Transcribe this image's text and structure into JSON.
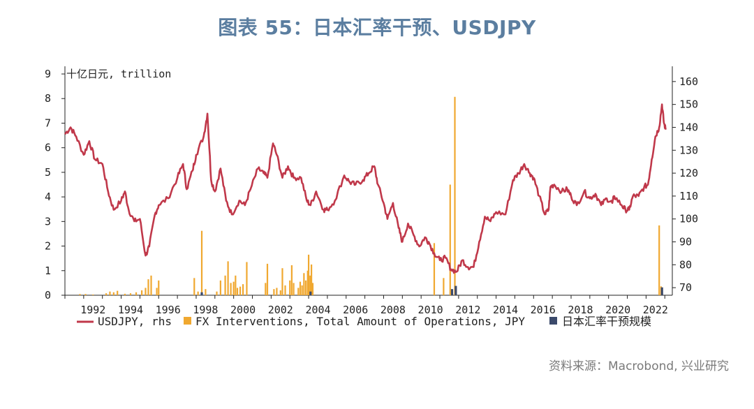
{
  "page": {
    "title": "图表 55：日本汇率干预、USDJPY",
    "source": "资料来源：Macrobond, 兴业研究"
  },
  "colors": {
    "usdjpy": "#c0384a",
    "fx": "#f0a830",
    "jp": "#3b4a6b",
    "axis": "#222222",
    "title": "#5b7ea0"
  },
  "chart_data": {
    "type": "line",
    "title": "日本汇率干预、USDJPY",
    "y_left_label": "十亿日元, trillion",
    "y_left_lim": [
      0,
      9
    ],
    "y_left_ticks": [
      "0",
      "1",
      "2",
      "3",
      "4",
      "5",
      "6",
      "7",
      "8",
      "9"
    ],
    "y_right_lim": [
      66.7,
      163.3
    ],
    "y_right_ticks": [
      "70",
      "80",
      "90",
      "100",
      "110",
      "120",
      "130",
      "140",
      "150",
      "160"
    ],
    "x_lim": [
      1991.0,
      2023.4
    ],
    "x_ticks": [
      "1992",
      "1994",
      "1996",
      "1998",
      "2000",
      "2002",
      "2004",
      "2006",
      "2008",
      "2010",
      "2012",
      "2014",
      "2016",
      "2018",
      "2020",
      "2022"
    ],
    "legend": [
      {
        "name": "USDJPY, rhs",
        "style": "line",
        "color": "#c0384a"
      },
      {
        "name": "FX Interventions, Total Amount of Operations, JPY",
        "style": "bar",
        "color": "#f0a830"
      },
      {
        "name": "日本汇率干预规模",
        "style": "bar",
        "color": "#3b4a6b"
      }
    ],
    "series": [
      {
        "name": "USDJPY, rhs",
        "axis": "right",
        "points": [
          [
            1991.0,
            137
          ],
          [
            1991.3,
            140
          ],
          [
            1991.6,
            136
          ],
          [
            1992.0,
            128
          ],
          [
            1992.3,
            134
          ],
          [
            1992.6,
            126
          ],
          [
            1993.0,
            124
          ],
          [
            1993.3,
            112
          ],
          [
            1993.6,
            104
          ],
          [
            1994.0,
            108
          ],
          [
            1994.2,
            112
          ],
          [
            1994.4,
            104
          ],
          [
            1994.7,
            99
          ],
          [
            1995.0,
            100
          ],
          [
            1995.3,
            84
          ],
          [
            1995.5,
            88
          ],
          [
            1995.8,
            102
          ],
          [
            1996.0,
            106
          ],
          [
            1996.5,
            109
          ],
          [
            1997.0,
            118
          ],
          [
            1997.3,
            124
          ],
          [
            1997.5,
            113
          ],
          [
            1997.8,
            121
          ],
          [
            1998.0,
            128
          ],
          [
            1998.4,
            136
          ],
          [
            1998.6,
            146
          ],
          [
            1998.8,
            117
          ],
          [
            1999.0,
            112
          ],
          [
            1999.3,
            122
          ],
          [
            1999.6,
            108
          ],
          [
            1999.9,
            102
          ],
          [
            2000.3,
            108
          ],
          [
            2000.6,
            106
          ],
          [
            2000.9,
            113
          ],
          [
            2001.3,
            122
          ],
          [
            2001.6,
            120
          ],
          [
            2001.8,
            118
          ],
          [
            2002.1,
            133
          ],
          [
            2002.3,
            128
          ],
          [
            2002.6,
            118
          ],
          [
            2002.9,
            123
          ],
          [
            2003.2,
            118
          ],
          [
            2003.6,
            118
          ],
          [
            2003.9,
            108
          ],
          [
            2004.1,
            106
          ],
          [
            2004.4,
            112
          ],
          [
            2004.8,
            104
          ],
          [
            2005.0,
            104
          ],
          [
            2005.4,
            108
          ],
          [
            2005.9,
            119
          ],
          [
            2006.2,
            116
          ],
          [
            2006.5,
            115
          ],
          [
            2006.9,
            117
          ],
          [
            2007.2,
            120
          ],
          [
            2007.5,
            123
          ],
          [
            2007.7,
            115
          ],
          [
            2008.0,
            107
          ],
          [
            2008.2,
            100
          ],
          [
            2008.5,
            107
          ],
          [
            2008.8,
            96
          ],
          [
            2009.0,
            90
          ],
          [
            2009.3,
            98
          ],
          [
            2009.6,
            93
          ],
          [
            2009.9,
            88
          ],
          [
            2010.2,
            92
          ],
          [
            2010.4,
            90
          ],
          [
            2010.7,
            85
          ],
          [
            2011.0,
            82
          ],
          [
            2011.3,
            83
          ],
          [
            2011.6,
            78
          ],
          [
            2011.9,
            77
          ],
          [
            2012.2,
            82
          ],
          [
            2012.5,
            79
          ],
          [
            2012.8,
            79
          ],
          [
            2013.1,
            90
          ],
          [
            2013.4,
            101
          ],
          [
            2013.7,
            99
          ],
          [
            2014.0,
            103
          ],
          [
            2014.5,
            102
          ],
          [
            2014.9,
            117
          ],
          [
            2015.2,
            120
          ],
          [
            2015.5,
            124
          ],
          [
            2015.8,
            120
          ],
          [
            2016.0,
            118
          ],
          [
            2016.3,
            110
          ],
          [
            2016.6,
            102
          ],
          [
            2016.8,
            104
          ],
          [
            2016.9,
            114
          ],
          [
            2017.1,
            115
          ],
          [
            2017.5,
            112
          ],
          [
            2017.8,
            113
          ],
          [
            2018.0,
            110
          ],
          [
            2018.3,
            106
          ],
          [
            2018.7,
            112
          ],
          [
            2019.0,
            109
          ],
          [
            2019.3,
            111
          ],
          [
            2019.6,
            106
          ],
          [
            2019.9,
            109
          ],
          [
            2020.2,
            107
          ],
          [
            2020.3,
            110
          ],
          [
            2020.7,
            106
          ],
          [
            2020.9,
            104
          ],
          [
            2021.1,
            104
          ],
          [
            2021.3,
            110
          ],
          [
            2021.6,
            110
          ],
          [
            2021.9,
            114
          ],
          [
            2022.1,
            115
          ],
          [
            2022.3,
            126
          ],
          [
            2022.5,
            136
          ],
          [
            2022.7,
            140
          ],
          [
            2022.85,
            150
          ],
          [
            2022.95,
            142
          ],
          [
            2023.05,
            139
          ]
        ]
      },
      {
        "name": "FX Interventions, Total Amount of Operations, JPY",
        "axis": "left",
        "bars": [
          [
            1991.8,
            0.05
          ],
          [
            1992.1,
            0.05
          ],
          [
            1992.5,
            0.03
          ],
          [
            1993.2,
            0.08
          ],
          [
            1993.4,
            0.15
          ],
          [
            1993.6,
            0.12
          ],
          [
            1993.8,
            0.18
          ],
          [
            1994.2,
            0.06
          ],
          [
            1994.5,
            0.08
          ],
          [
            1994.8,
            0.12
          ],
          [
            1995.1,
            0.2
          ],
          [
            1995.3,
            0.3
          ],
          [
            1995.45,
            0.65
          ],
          [
            1995.6,
            0.8
          ],
          [
            1995.9,
            0.3
          ],
          [
            1996.0,
            0.6
          ],
          [
            1997.9,
            0.7
          ],
          [
            1998.1,
            0.15
          ],
          [
            1998.3,
            2.62
          ],
          [
            1998.5,
            0.25
          ],
          [
            1999.1,
            0.15
          ],
          [
            1999.3,
            0.6
          ],
          [
            1999.55,
            0.8
          ],
          [
            1999.7,
            1.38
          ],
          [
            1999.85,
            0.5
          ],
          [
            2000.0,
            0.55
          ],
          [
            2000.1,
            0.8
          ],
          [
            2000.2,
            0.3
          ],
          [
            2000.35,
            0.35
          ],
          [
            2000.5,
            0.45
          ],
          [
            2000.7,
            1.35
          ],
          [
            2001.7,
            0.5
          ],
          [
            2001.8,
            1.28
          ],
          [
            2002.15,
            0.25
          ],
          [
            2002.3,
            0.3
          ],
          [
            2002.5,
            0.2
          ],
          [
            2002.6,
            1.1
          ],
          [
            2002.75,
            0.4
          ],
          [
            2003.0,
            0.6
          ],
          [
            2003.1,
            1.22
          ],
          [
            2003.2,
            0.5
          ],
          [
            2003.45,
            0.3
          ],
          [
            2003.55,
            0.55
          ],
          [
            2003.65,
            0.4
          ],
          [
            2003.75,
            0.9
          ],
          [
            2003.85,
            0.6
          ],
          [
            2003.95,
            1.0
          ],
          [
            2004.0,
            1.65
          ],
          [
            2004.08,
            0.8
          ],
          [
            2004.15,
            1.25
          ],
          [
            2004.22,
            0.5
          ],
          [
            2010.7,
            2.12
          ],
          [
            2011.2,
            0.7
          ],
          [
            2011.55,
            4.5
          ],
          [
            2011.8,
            8.07
          ],
          [
            2022.7,
            2.84
          ],
          [
            2022.8,
            0.36
          ]
        ]
      },
      {
        "name": "日本汇率干预规模",
        "axis": "left",
        "bars": [
          [
            1998.3,
            0.12
          ],
          [
            2004.1,
            0.15
          ],
          [
            2011.65,
            0.25
          ],
          [
            2011.85,
            0.38
          ],
          [
            2022.85,
            0.32
          ]
        ]
      }
    ]
  }
}
